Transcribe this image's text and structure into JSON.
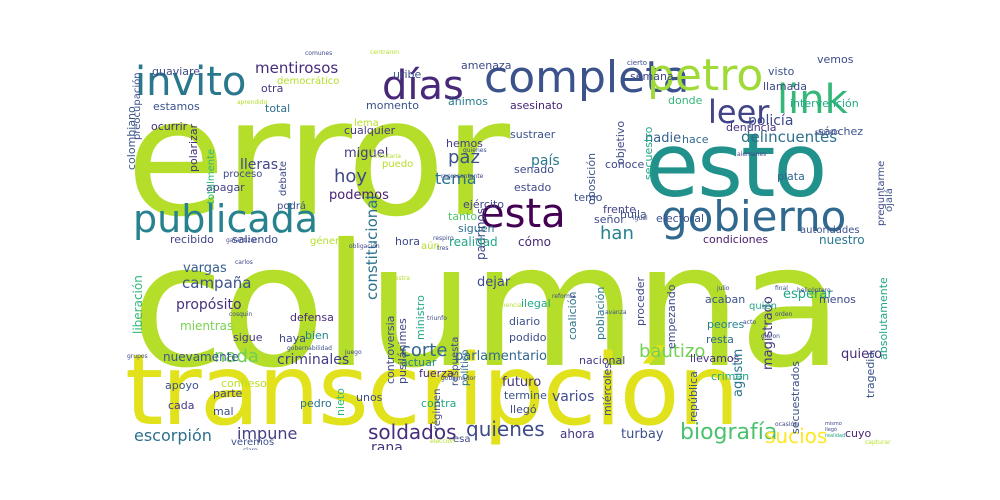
{
  "words": [
    {
      "text": "error",
      "color": "#b5de2b"
    },
    {
      "text": "columna",
      "color": "#b5de2b"
    },
    {
      "text": "transcripción",
      "color": "#e1e21b"
    },
    {
      "text": "esto",
      "color": "#21918c"
    },
    {
      "text": "completa",
      "color": "#3b528b"
    },
    {
      "text": "gobierno",
      "color": "#31688e"
    },
    {
      "text": "publicada",
      "color": "#26828e"
    },
    {
      "text": "esta",
      "color": "#440154"
    },
    {
      "text": "petro",
      "color": "#a0da39"
    },
    {
      "text": "invito",
      "color": "#2a788e"
    },
    {
      "text": "link",
      "color": "#35b779"
    },
    {
      "text": "días",
      "color": "#482878"
    },
    {
      "text": "leer",
      "color": "#414487"
    },
    {
      "text": "biografía",
      "color": "#4ac16d"
    },
    {
      "text": "soldados",
      "color": "#472d7b"
    },
    {
      "text": "quienes",
      "color": "#3e4a89"
    },
    {
      "text": "sucios",
      "color": "#fde725"
    },
    {
      "text": "bautizo",
      "color": "#73d056"
    },
    {
      "text": "corte",
      "color": "#31688e"
    },
    {
      "text": "nada",
      "color": "#6ece58"
    },
    {
      "text": "hoy",
      "color": "#3e4989"
    },
    {
      "text": "tema",
      "color": "#2c728e"
    },
    {
      "text": "han",
      "color": "#26818e"
    },
    {
      "text": "paz",
      "color": "#3b528b"
    },
    {
      "text": "impune",
      "color": "#433e85"
    },
    {
      "text": "escorpión",
      "color": "#2d708e"
    },
    {
      "text": "rana",
      "color": "#46337e"
    },
    {
      "text": "mentirosos",
      "color": "#472a7a"
    },
    {
      "text": "campaña",
      "color": "#3b528b"
    },
    {
      "text": "propósito",
      "color": "#46327e"
    },
    {
      "text": "vargas",
      "color": "#365c8d"
    },
    {
      "text": "criminales",
      "color": "#433e85"
    },
    {
      "text": "nuevamente",
      "color": "#39568c"
    },
    {
      "text": "policía",
      "color": "#3e4989"
    },
    {
      "text": "delincuentes",
      "color": "#2d708e"
    },
    {
      "text": "lleras",
      "color": "#3f4788"
    },
    {
      "text": "miguel",
      "color": "#443983"
    },
    {
      "text": "podemos",
      "color": "#482173"
    },
    {
      "text": "país",
      "color": "#2a788e"
    },
    {
      "text": "nadie",
      "color": "#355f8d"
    },
    {
      "text": "constitucional",
      "color": "#2c728e"
    },
    {
      "text": "parlamentario",
      "color": "#31688e"
    },
    {
      "text": "futuro",
      "color": "#453581"
    },
    {
      "text": "varios",
      "color": "#3e4a89"
    },
    {
      "text": "agustín",
      "color": "#2a788e"
    },
    {
      "text": "magistrado",
      "color": "#443a83"
    },
    {
      "text": "quiero",
      "color": "#472c7a"
    },
    {
      "text": "ahora",
      "color": "#463480"
    },
    {
      "text": "turbay",
      "color": "#3b528b"
    },
    {
      "text": "cuyo",
      "color": "#482475"
    },
    {
      "text": "esperar",
      "color": "#22a884"
    },
    {
      "text": "autoridades",
      "color": "#3b528b"
    },
    {
      "text": "condiciones",
      "color": "#481a6c"
    },
    {
      "text": "nuestro",
      "color": "#2a778e"
    },
    {
      "text": "dejar",
      "color": "#3e4989"
    },
    {
      "text": "padrinos",
      "color": "#3f4889"
    },
    {
      "text": "realidad",
      "color": "#22a785"
    },
    {
      "text": "cómo",
      "color": "#482878"
    },
    {
      "text": "siguen",
      "color": "#2d708e"
    },
    {
      "text": "tanto",
      "color": "#52c569"
    },
    {
      "text": "ejército",
      "color": "#404688"
    },
    {
      "text": "hemos",
      "color": "#433d84"
    },
    {
      "text": "conoce",
      "color": "#3e4989"
    },
    {
      "text": "hace",
      "color": "#31688e"
    },
    {
      "text": "denuncia",
      "color": "#46327e"
    },
    {
      "text": "frente",
      "color": "#414487"
    },
    {
      "text": "cualquier",
      "color": "#453882"
    },
    {
      "text": "ánimos",
      "color": "#297b8e"
    },
    {
      "text": "asesinato",
      "color": "#482475"
    },
    {
      "text": "amenaza",
      "color": "#3e4a89"
    },
    {
      "text": "uribe",
      "color": "#3b528b"
    },
    {
      "text": "otra",
      "color": "#443983"
    },
    {
      "text": "total",
      "color": "#2d708e"
    },
    {
      "text": "estamos",
      "color": "#3b528b"
    },
    {
      "text": "ocurrir",
      "color": "#472d7b"
    },
    {
      "text": "guaviare",
      "color": "#3e4a89"
    },
    {
      "text": "colombiano",
      "color": "#39568c"
    },
    {
      "text": "polarizar",
      "color": "#46317e"
    },
    {
      "text": "apagar",
      "color": "#414487"
    },
    {
      "text": "saliendo",
      "color": "#3f4788"
    },
    {
      "text": "recibido",
      "color": "#414487"
    },
    {
      "text": "hora",
      "color": "#3e4989"
    },
    {
      "text": "liberación",
      "color": "#35b779"
    },
    {
      "text": "mientras",
      "color": "#7ad151"
    },
    {
      "text": "haya",
      "color": "#3e4a89"
    },
    {
      "text": "bien",
      "color": "#24868e"
    },
    {
      "text": "defensa",
      "color": "#472a7a"
    },
    {
      "text": "sigue",
      "color": "#453781"
    },
    {
      "text": "apoyo",
      "color": "#3b528b"
    },
    {
      "text": "cada",
      "color": "#453882"
    },
    {
      "text": "mal",
      "color": "#3e4a89"
    },
    {
      "text": "parte",
      "color": "#404588"
    },
    {
      "text": "confieso",
      "color": "#bddf26"
    },
    {
      "text": "pedro",
      "color": "#2c728e"
    },
    {
      "text": "nieto",
      "color": "#35b779"
    },
    {
      "text": "unos",
      "color": "#3e4a89"
    },
    {
      "text": "contra",
      "color": "#22a884"
    },
    {
      "text": "llegó",
      "color": "#3e4a89"
    },
    {
      "text": "fuerza",
      "color": "#482677"
    },
    {
      "text": "actuar",
      "color": "#26818e"
    },
    {
      "text": "termine",
      "color": "#3b528b"
    },
    {
      "text": "nacional",
      "color": "#443983"
    },
    {
      "text": "llevamos",
      "color": "#46327e"
    },
    {
      "text": "crimen",
      "color": "#22a884"
    },
    {
      "text": "tragedia",
      "color": "#3b528b"
    },
    {
      "text": "menos",
      "color": "#3e4a89"
    },
    {
      "text": "peores",
      "color": "#26828e"
    },
    {
      "text": "resta",
      "color": "#31688e"
    },
    {
      "text": "proceder",
      "color": "#3f4788"
    },
    {
      "text": "población",
      "color": "#2a788e"
    },
    {
      "text": "acaban",
      "color": "#3b528b"
    },
    {
      "text": "absolutamente",
      "color": "#22a884"
    },
    {
      "text": "secuestrados",
      "color": "#3b528b"
    },
    {
      "text": "coalición",
      "color": "#2c728e"
    },
    {
      "text": "ministro",
      "color": "#22a884"
    },
    {
      "text": "controversia",
      "color": "#3e4a89"
    },
    {
      "text": "pusilánimes",
      "color": "#414487"
    },
    {
      "text": "respuesta",
      "color": "#3e4a89"
    },
    {
      "text": "político",
      "color": "#2d708e"
    },
    {
      "text": "diario",
      "color": "#3b528b"
    },
    {
      "text": "podido",
      "color": "#3e4a89"
    },
    {
      "text": "ilegal",
      "color": "#22a884"
    },
    {
      "text": "realidad",
      "color": "#22a785"
    },
    {
      "text": "miércoles",
      "color": "#3e4a89"
    },
    {
      "text": "república",
      "color": "#3b528b"
    },
    {
      "text": "empezando",
      "color": "#3e4a89"
    },
    {
      "text": "huila",
      "color": "#3b528b"
    },
    {
      "text": "electoral",
      "color": "#3b528b"
    },
    {
      "text": "plata",
      "color": "#31688e"
    },
    {
      "text": "secuestro",
      "color": "#22a884"
    },
    {
      "text": "oposición",
      "color": "#3b528b"
    },
    {
      "text": "objetivo",
      "color": "#3e4a89"
    },
    {
      "text": "senado",
      "color": "#3e4a89"
    },
    {
      "text": "sustraer",
      "color": "#3b528b"
    },
    {
      "text": "estado",
      "color": "#3e4a89"
    },
    {
      "text": "temo",
      "color": "#3b528b"
    },
    {
      "text": "señor",
      "color": "#3e4a89"
    },
    {
      "text": "sánchez",
      "color": "#3b528b"
    },
    {
      "text": "intervención",
      "color": "#22a884"
    },
    {
      "text": "llamada",
      "color": "#3e4a89"
    },
    {
      "text": "donde",
      "color": "#35b779"
    },
    {
      "text": "semana",
      "color": "#3e4a89"
    },
    {
      "text": "visto",
      "color": "#3b528b"
    },
    {
      "text": "vemos",
      "color": "#3e4a89"
    },
    {
      "text": "momento",
      "color": "#3b528b"
    },
    {
      "text": "lema",
      "color": "#b5de2b"
    },
    {
      "text": "democrático",
      "color": "#b5de2b"
    },
    {
      "text": "preocupación",
      "color": "#3b528b"
    },
    {
      "text": "debate",
      "color": "#3e4a89"
    },
    {
      "text": "proceso",
      "color": "#3e4a89"
    },
    {
      "text": "podrá",
      "color": "#3b528b"
    },
    {
      "text": "totalmente",
      "color": "#35b779"
    },
    {
      "text": "género",
      "color": "#b5de2b"
    },
    {
      "text": "aún",
      "color": "#b5de2b"
    },
    {
      "text": "puedo",
      "color": "#b5de2b"
    },
    {
      "text": "llegó",
      "color": "#3e4a89"
    },
    {
      "text": "esa",
      "color": "#3e4a89"
    },
    {
      "text": "veremos",
      "color": "#3b528b"
    },
    {
      "text": "ojalá",
      "color": "#3b528b"
    },
    {
      "text": "preguntarme",
      "color": "#3e4a89"
    },
    {
      "text": "quién",
      "color": "#22a884"
    },
    {
      "text": "régimen",
      "color": "#3e4a89"
    },
    {
      "text": "cierto",
      "color": "#3e4a89"
    },
    {
      "text": "comunes",
      "color": "#3e4a89"
    },
    {
      "text": "centraron",
      "color": "#b5de2b"
    },
    {
      "text": "tributaria",
      "color": "#b5de2b"
    },
    {
      "text": "gobernabilidad",
      "color": "#3b528b"
    },
    {
      "text": "gobernador",
      "color": "#3e4a89"
    },
    {
      "text": "elección",
      "color": "#b5de2b"
    },
    {
      "text": "carlos",
      "color": "#3e4a89"
    },
    {
      "text": "grupos",
      "color": "#3e4a89"
    },
    {
      "text": "helicóptero",
      "color": "#3e4a89"
    },
    {
      "text": "final",
      "color": "#3b528b"
    },
    {
      "text": "julio",
      "color": "#3e4a89"
    },
    {
      "text": "clemencia",
      "color": "#b5de2b"
    },
    {
      "text": "reforma",
      "color": "#3e4a89"
    },
    {
      "text": "igual",
      "color": "#3e4a89"
    },
    {
      "text": "avanza",
      "color": "#3b528b"
    },
    {
      "text": "acto",
      "color": "#3e4a89"
    },
    {
      "text": "diaron",
      "color": "#3e4a89"
    },
    {
      "text": "triunfo",
      "color": "#3e4a89"
    },
    {
      "text": "capturar",
      "color": "#b5de2b"
    },
    {
      "text": "representante",
      "color": "#3e4a89"
    },
    {
      "text": "quienes",
      "color": "#3e4a89"
    },
    {
      "text": "garantizar",
      "color": "#3e4a89"
    },
    {
      "text": "obligación",
      "color": "#3e4a89"
    },
    {
      "text": "respiro",
      "color": "#3e4a89"
    },
    {
      "text": "tres",
      "color": "#3e4a89"
    },
    {
      "text": "aprendido",
      "color": "#b5de2b"
    },
    {
      "text": "cosquin",
      "color": "#3e4a89"
    },
    {
      "text": "orden",
      "color": "#3e4a89"
    },
    {
      "text": "alemanes",
      "color": "#3e4a89"
    },
    {
      "text": "sagrado",
      "color": "#3e4a89"
    },
    {
      "text": "muestra",
      "color": "#3e4a89"
    },
    {
      "text": "ocasión",
      "color": "#b5de2b"
    },
    {
      "text": "claro",
      "color": "#3e4a89"
    },
    {
      "text": "juego",
      "color": "#3e4a89"
    },
    {
      "text": "mismo",
      "color": "#3e4a89"
    }
  ]
}
